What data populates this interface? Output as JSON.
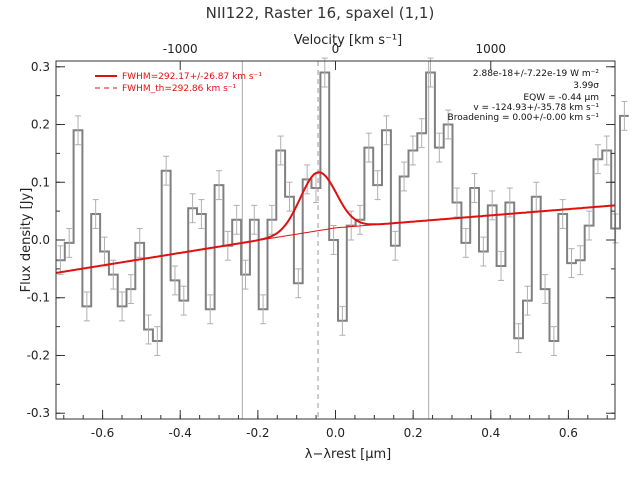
{
  "chart_data": {
    "type": "line",
    "title": "NII122, Raster 16, spaxel (1,1)",
    "xlabel": "λ−λrest [μm]",
    "ylabel": "Flux density [Jy]",
    "top_xlabel": "Velocity [km s⁻¹]",
    "xlim": [
      -0.72,
      0.72
    ],
    "ylim": [
      -0.31,
      0.31
    ],
    "x_ticks": [
      "-0.6",
      "-0.4",
      "-0.2",
      "0.0",
      "0.2",
      "0.4",
      "0.6"
    ],
    "y_ticks": [
      "-0.3",
      "-0.2",
      "-0.1",
      "0.0",
      "0.1",
      "0.2",
      "0.3"
    ],
    "top_ticks": [
      "-1000",
      "0",
      "1000"
    ],
    "top_tick_positions_um": [
      -0.4,
      0.0,
      0.4
    ],
    "grid": false,
    "legend_position": "top-left",
    "series": [
      {
        "name": "FWHM=292.17+/-26.87 km s⁻¹",
        "color": "#e01010",
        "style": "solid",
        "kind": "fit",
        "baseline": [
          [
            -0.72,
            -0.057
          ],
          [
            0.0,
            0.021
          ],
          [
            0.72,
            0.06
          ]
        ],
        "gaussian": {
          "center": -0.045,
          "amplitude": 0.101,
          "sigma": 0.046
        }
      },
      {
        "name": "FWHM_th=292.86 km s⁻¹",
        "color": "#e01010",
        "style": "dashed",
        "kind": "legend-only"
      },
      {
        "name": "data",
        "color": "#808080",
        "kind": "step",
        "bin_width": 0.0227,
        "x_start": -0.72,
        "y": [
          -0.035,
          -0.005,
          0.19,
          -0.115,
          0.045,
          -0.02,
          -0.06,
          -0.115,
          -0.085,
          -0.005,
          -0.155,
          -0.175,
          0.12,
          -0.07,
          -0.105,
          0.055,
          0.045,
          -0.12,
          0.095,
          -0.01,
          0.035,
          -0.06,
          0.035,
          -0.12,
          0.035,
          0.155,
          0.075,
          -0.075,
          0.105,
          0.09,
          0.29,
          0.0,
          -0.14,
          0.025,
          0.035,
          0.16,
          0.095,
          0.19,
          -0.01,
          0.11,
          0.155,
          0.185,
          0.29,
          0.16,
          0.2,
          0.065,
          -0.005,
          0.09,
          -0.02,
          0.06,
          -0.045,
          0.065,
          -0.17,
          -0.105,
          0.075,
          -0.085,
          -0.175,
          0.045,
          -0.04,
          -0.035,
          0.025,
          0.14,
          0.155,
          0.02,
          0.215
        ],
        "err": 0.025
      }
    ],
    "vertical_lines": [
      {
        "x": -0.24,
        "style": "solid",
        "color": "#aaaaaa"
      },
      {
        "x": 0.24,
        "style": "solid",
        "color": "#aaaaaa"
      },
      {
        "x": -0.045,
        "style": "dashed",
        "color": "#999999"
      }
    ],
    "annotations": [
      "2.88e-18+/-7.22e-19 W m⁻²",
      "3.99σ",
      "EQW = -0.44 μm",
      "v = -124.93+/-35.78 km s⁻¹",
      "Broadening = 0.00+/-0.00 km s⁻¹"
    ]
  }
}
